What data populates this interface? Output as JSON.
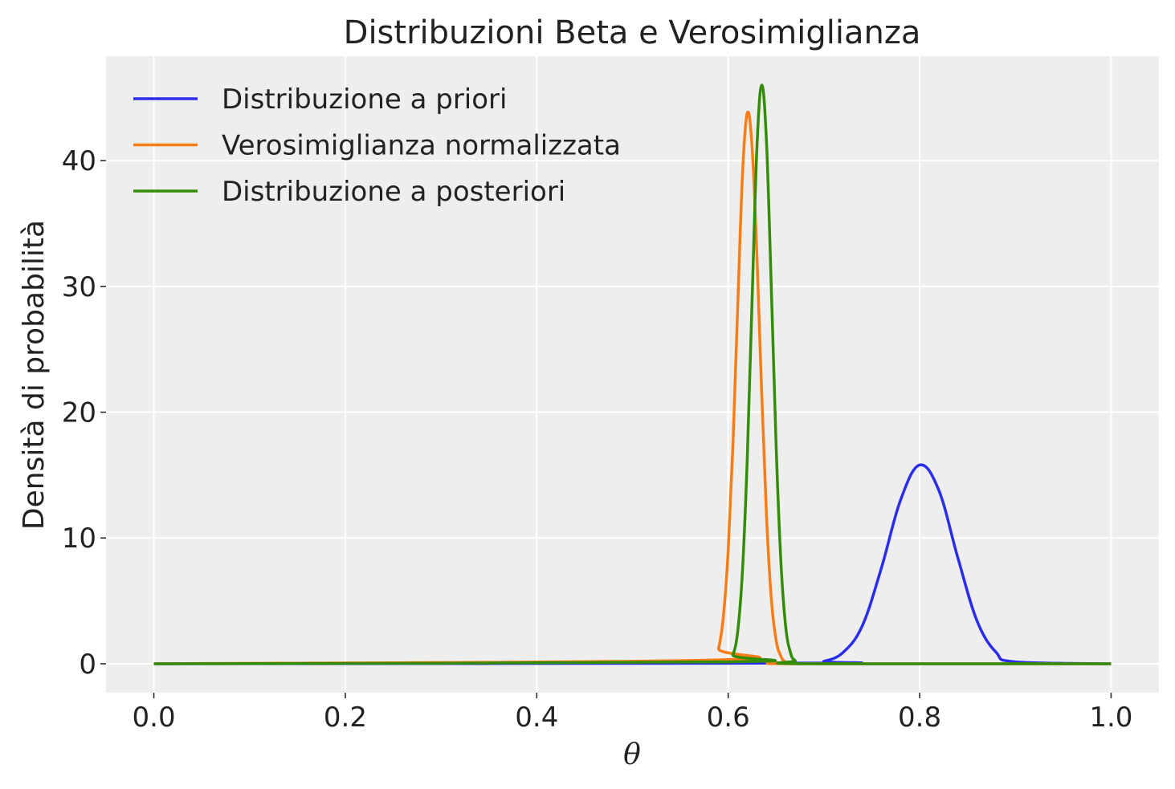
{
  "chart_data": {
    "type": "line",
    "title": "Distribuzioni Beta e Verosimiglianza",
    "xlabel": "θ",
    "ylabel": "Densità di probabilità",
    "xlim": [
      -0.05,
      1.05
    ],
    "ylim": [
      -2.3,
      48.3
    ],
    "xticks": [
      0.0,
      0.2,
      0.4,
      0.6,
      0.8,
      1.0
    ],
    "xtick_labels": [
      "0.0",
      "0.2",
      "0.4",
      "0.6",
      "0.8",
      "1.0"
    ],
    "yticks": [
      0,
      10,
      20,
      30,
      40
    ],
    "ytick_labels": [
      "0",
      "10",
      "20",
      "30",
      "40"
    ],
    "grid": true,
    "legend_position": "top-left",
    "background_color": "#EEEEEE",
    "series": [
      {
        "name": "Distribuzione a priori",
        "color": "#2A2EEC",
        "peak_x": 0.802,
        "peak_y": 15.8,
        "x": [
          0.0,
          0.68,
          0.7,
          0.72,
          0.74,
          0.76,
          0.78,
          0.8,
          0.82,
          0.84,
          0.86,
          0.88,
          0.9,
          1.0
        ],
        "y": [
          0.0,
          0.05,
          0.2,
          0.9,
          3.0,
          7.6,
          13.0,
          15.8,
          13.8,
          8.4,
          3.4,
          0.9,
          0.15,
          0.0
        ]
      },
      {
        "name": "Verosimiglianza normalizzata",
        "color": "#FA7C17",
        "peak_x": 0.62,
        "peak_y": 43.8,
        "x": [
          0.0,
          0.585,
          0.59,
          0.595,
          0.6,
          0.605,
          0.61,
          0.615,
          0.62,
          0.625,
          0.63,
          0.635,
          0.64,
          0.645,
          0.65,
          0.655,
          0.66,
          0.67,
          1.0
        ],
        "y": [
          0.0,
          0.3,
          1.2,
          3.8,
          9.0,
          17.5,
          28.5,
          39.0,
          43.8,
          41.0,
          32.5,
          21.5,
          11.8,
          5.2,
          1.9,
          0.6,
          0.15,
          0.0,
          0.0
        ]
      },
      {
        "name": "Distribuzione a posteriori",
        "color": "#328C06",
        "peak_x": 0.634,
        "peak_y": 46.0,
        "x": [
          0.0,
          0.6,
          0.605,
          0.61,
          0.615,
          0.62,
          0.625,
          0.63,
          0.635,
          0.64,
          0.645,
          0.65,
          0.655,
          0.66,
          0.665,
          0.67,
          0.68,
          1.0
        ],
        "y": [
          0.0,
          0.15,
          0.7,
          2.6,
          7.5,
          16.5,
          29.0,
          41.0,
          46.0,
          41.5,
          30.0,
          17.5,
          8.2,
          3.0,
          0.9,
          0.25,
          0.0,
          0.0
        ]
      }
    ]
  }
}
